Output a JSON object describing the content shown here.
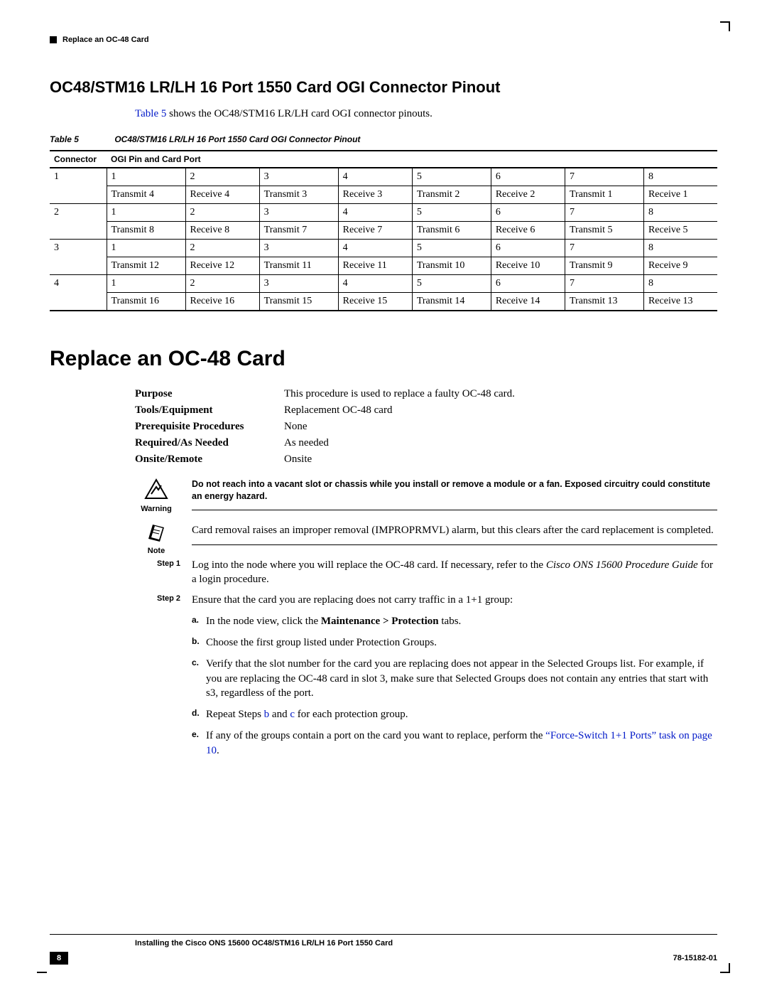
{
  "header": {
    "title": "Replace an OC-48 Card"
  },
  "subhead": "OC48/STM16 LR/LH 16 Port 1550 Card OGI Connector Pinout",
  "intro_pre": "Table 5",
  "intro_post": " shows the OC48/STM16 LR/LH card OGI connector pinouts.",
  "table": {
    "caption_num": "Table 5",
    "caption": "OC48/STM16 LR/LH 16 Port 1550 Card OGI Connector Pinout",
    "head_left": "Connector",
    "head_right": "OGI Pin and Card Port",
    "groups": [
      {
        "conn": "1",
        "pins": [
          "1",
          "2",
          "3",
          "4",
          "5",
          "6",
          "7",
          "8"
        ],
        "ports": [
          "Transmit 4",
          "Receive 4",
          "Transmit 3",
          "Receive 3",
          "Transmit 2",
          "Receive 2",
          "Transmit 1",
          "Receive 1"
        ]
      },
      {
        "conn": "2",
        "pins": [
          "1",
          "2",
          "3",
          "4",
          "5",
          "6",
          "7",
          "8"
        ],
        "ports": [
          "Transmit 8",
          "Receive 8",
          "Transmit 7",
          "Receive 7",
          "Transmit 6",
          "Receive 6",
          "Transmit 5",
          "Receive 5"
        ]
      },
      {
        "conn": "3",
        "pins": [
          "1",
          "2",
          "3",
          "4",
          "5",
          "6",
          "7",
          "8"
        ],
        "ports": [
          "Transmit 12",
          "Receive 12",
          "Transmit 11",
          "Receive 11",
          "Transmit 10",
          "Receive 10",
          "Transmit 9",
          "Receive 9"
        ]
      },
      {
        "conn": "4",
        "pins": [
          "1",
          "2",
          "3",
          "4",
          "5",
          "6",
          "7",
          "8"
        ],
        "ports": [
          "Transmit 16",
          "Receive 16",
          "Transmit 15",
          "Receive 15",
          "Transmit 14",
          "Receive 14",
          "Transmit 13",
          "Receive 13"
        ]
      }
    ]
  },
  "mainhead": "Replace an OC-48 Card",
  "meta": {
    "purpose_k": "Purpose",
    "purpose_v": "This procedure is used to replace a faulty OC-48 card.",
    "tools_k": "Tools/Equipment",
    "tools_v": "Replacement OC-48 card",
    "prereq_k": "Prerequisite Procedures",
    "prereq_v": "None",
    "req_k": "Required/As Needed",
    "req_v": "As needed",
    "onsite_k": "Onsite/Remote",
    "onsite_v": "Onsite"
  },
  "warning": {
    "label": "Warning",
    "text": "Do not reach into a vacant slot or chassis while you install or remove a module or a fan. Exposed circuitry could constitute an energy hazard."
  },
  "note": {
    "label": "Note",
    "text": "Card removal raises an improper removal (IMPROPRMVL) alarm, but this clears after the card replacement is completed."
  },
  "steps": {
    "s1_label": "Step 1",
    "s1_a": "Log into the node where you will replace the OC-48 card. If necessary, refer to the ",
    "s1_b": "Cisco ONS 15600 Procedure Guide",
    "s1_c": " for a login procedure.",
    "s2_label": "Step 2",
    "s2": "Ensure that the card you are replacing does not carry traffic in a 1+1 group:",
    "s2_items": {
      "a_pre": "In the node view, click the ",
      "a_bold": "Maintenance > Protection",
      "a_post": " tabs.",
      "b": "Choose the first group listed under Protection Groups.",
      "c": "Verify that the slot number for the card you are replacing does not appear in the Selected Groups list. For example, if you are replacing the OC-48 card in slot 3, make sure that Selected Groups does not contain any entries that start with s3, regardless of the port.",
      "d_pre": "Repeat Steps ",
      "d_l1": "b",
      "d_mid": " and ",
      "d_l2": "c",
      "d_post": " for each protection group.",
      "e_pre": "If any of the groups contain a port on the card you want to replace, perform the ",
      "e_link": "“Force-Switch 1+1 Ports” task on page 10",
      "e_post": "."
    }
  },
  "footer": {
    "line1": "Installing the Cisco ONS 15600 OC48/STM16 LR/LH 16 Port 1550 Card",
    "page": "8",
    "docnum": "78-15182-01"
  }
}
